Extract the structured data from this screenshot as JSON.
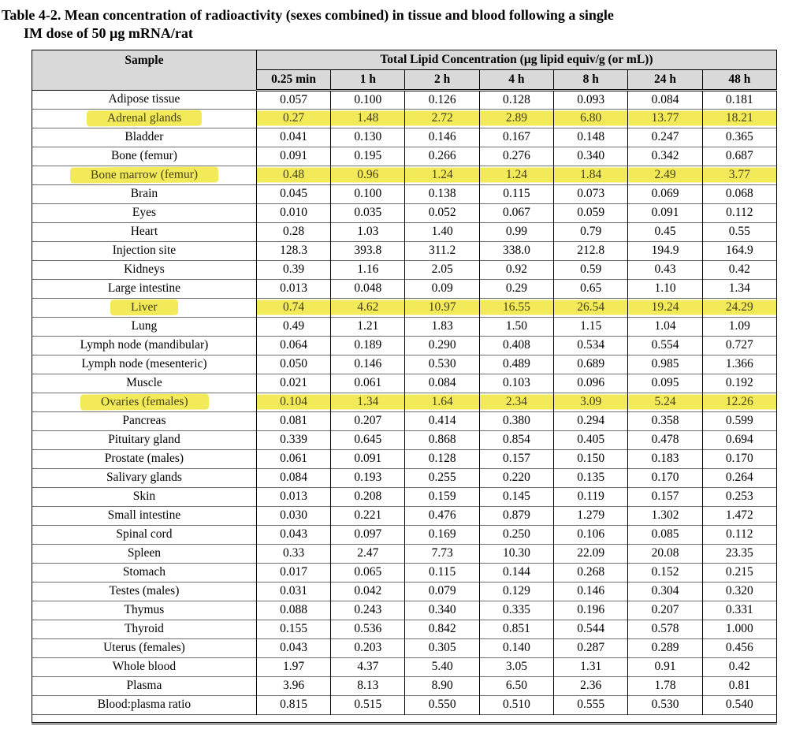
{
  "colors": {
    "header_bg": "#d9d9d9",
    "highlight": "#f2ea58"
  },
  "title": {
    "line1": "Table 4-2. Mean concentration of radioactivity (sexes combined) in tissue and blood following a single",
    "line2": "IM dose of 50 µg mRNA/rat"
  },
  "table": {
    "sample_header": "Sample",
    "group_header": "Total Lipid Concentration (µg lipid equiv/g (or mL))",
    "time_headers": [
      "0.25 min",
      "1 h",
      "2 h",
      "4 h",
      "8 h",
      "24 h",
      "48 h"
    ],
    "rows": [
      {
        "sample": "Adipose tissue",
        "values": [
          "0.057",
          "0.100",
          "0.126",
          "0.128",
          "0.093",
          "0.084",
          "0.181"
        ],
        "highlighted": false
      },
      {
        "sample": "Adrenal glands",
        "values": [
          "0.27",
          "1.48",
          "2.72",
          "2.89",
          "6.80",
          "13.77",
          "18.21"
        ],
        "highlighted": true
      },
      {
        "sample": "Bladder",
        "values": [
          "0.041",
          "0.130",
          "0.146",
          "0.167",
          "0.148",
          "0.247",
          "0.365"
        ],
        "highlighted": false
      },
      {
        "sample": "Bone (femur)",
        "values": [
          "0.091",
          "0.195",
          "0.266",
          "0.276",
          "0.340",
          "0.342",
          "0.687"
        ],
        "highlighted": false
      },
      {
        "sample": "Bone marrow (femur)",
        "values": [
          "0.48",
          "0.96",
          "1.24",
          "1.24",
          "1.84",
          "2.49",
          "3.77"
        ],
        "highlighted": true
      },
      {
        "sample": "Brain",
        "values": [
          "0.045",
          "0.100",
          "0.138",
          "0.115",
          "0.073",
          "0.069",
          "0.068"
        ],
        "highlighted": false
      },
      {
        "sample": "Eyes",
        "values": [
          "0.010",
          "0.035",
          "0.052",
          "0.067",
          "0.059",
          "0.091",
          "0.112"
        ],
        "highlighted": false
      },
      {
        "sample": "Heart",
        "values": [
          "0.28",
          "1.03",
          "1.40",
          "0.99",
          "0.79",
          "0.45",
          "0.55"
        ],
        "highlighted": false
      },
      {
        "sample": "Injection site",
        "values": [
          "128.3",
          "393.8",
          "311.2",
          "338.0",
          "212.8",
          "194.9",
          "164.9"
        ],
        "highlighted": false
      },
      {
        "sample": "Kidneys",
        "values": [
          "0.39",
          "1.16",
          "2.05",
          "0.92",
          "0.59",
          "0.43",
          "0.42"
        ],
        "highlighted": false
      },
      {
        "sample": "Large intestine",
        "values": [
          "0.013",
          "0.048",
          "0.09",
          "0.29",
          "0.65",
          "1.10",
          "1.34"
        ],
        "highlighted": false
      },
      {
        "sample": "Liver",
        "values": [
          "0.74",
          "4.62",
          "10.97",
          "16.55",
          "26.54",
          "19.24",
          "24.29"
        ],
        "highlighted": true
      },
      {
        "sample": "Lung",
        "values": [
          "0.49",
          "1.21",
          "1.83",
          "1.50",
          "1.15",
          "1.04",
          "1.09"
        ],
        "highlighted": false
      },
      {
        "sample": "Lymph node (mandibular)",
        "values": [
          "0.064",
          "0.189",
          "0.290",
          "0.408",
          "0.534",
          "0.554",
          "0.727"
        ],
        "highlighted": false
      },
      {
        "sample": "Lymph node (mesenteric)",
        "values": [
          "0.050",
          "0.146",
          "0.530",
          "0.489",
          "0.689",
          "0.985",
          "1.366"
        ],
        "highlighted": false
      },
      {
        "sample": "Muscle",
        "values": [
          "0.021",
          "0.061",
          "0.084",
          "0.103",
          "0.096",
          "0.095",
          "0.192"
        ],
        "highlighted": false
      },
      {
        "sample": "Ovaries (females)",
        "values": [
          "0.104",
          "1.34",
          "1.64",
          "2.34",
          "3.09",
          "5.24",
          "12.26"
        ],
        "highlighted": true
      },
      {
        "sample": "Pancreas",
        "values": [
          "0.081",
          "0.207",
          "0.414",
          "0.380",
          "0.294",
          "0.358",
          "0.599"
        ],
        "highlighted": false
      },
      {
        "sample": "Pituitary gland",
        "values": [
          "0.339",
          "0.645",
          "0.868",
          "0.854",
          "0.405",
          "0.478",
          "0.694"
        ],
        "highlighted": false
      },
      {
        "sample": "Prostate (males)",
        "values": [
          "0.061",
          "0.091",
          "0.128",
          "0.157",
          "0.150",
          "0.183",
          "0.170"
        ],
        "highlighted": false
      },
      {
        "sample": "Salivary glands",
        "values": [
          "0.084",
          "0.193",
          "0.255",
          "0.220",
          "0.135",
          "0.170",
          "0.264"
        ],
        "highlighted": false
      },
      {
        "sample": "Skin",
        "values": [
          "0.013",
          "0.208",
          "0.159",
          "0.145",
          "0.119",
          "0.157",
          "0.253"
        ],
        "highlighted": false
      },
      {
        "sample": "Small intestine",
        "values": [
          "0.030",
          "0.221",
          "0.476",
          "0.879",
          "1.279",
          "1.302",
          "1.472"
        ],
        "highlighted": false
      },
      {
        "sample": "Spinal cord",
        "values": [
          "0.043",
          "0.097",
          "0.169",
          "0.250",
          "0.106",
          "0.085",
          "0.112"
        ],
        "highlighted": false
      },
      {
        "sample": "Spleen",
        "values": [
          "0.33",
          "2.47",
          "7.73",
          "10.30",
          "22.09",
          "20.08",
          "23.35"
        ],
        "highlighted": false
      },
      {
        "sample": "Stomach",
        "values": [
          "0.017",
          "0.065",
          "0.115",
          "0.144",
          "0.268",
          "0.152",
          "0.215"
        ],
        "highlighted": false
      },
      {
        "sample": "Testes (males)",
        "values": [
          "0.031",
          "0.042",
          "0.079",
          "0.129",
          "0.146",
          "0.304",
          "0.320"
        ],
        "highlighted": false
      },
      {
        "sample": "Thymus",
        "values": [
          "0.088",
          "0.243",
          "0.340",
          "0.335",
          "0.196",
          "0.207",
          "0.331"
        ],
        "highlighted": false
      },
      {
        "sample": "Thyroid",
        "values": [
          "0.155",
          "0.536",
          "0.842",
          "0.851",
          "0.544",
          "0.578",
          "1.000"
        ],
        "highlighted": false
      },
      {
        "sample": "Uterus (females)",
        "values": [
          "0.043",
          "0.203",
          "0.305",
          "0.140",
          "0.287",
          "0.289",
          "0.456"
        ],
        "highlighted": false
      },
      {
        "sample": "Whole blood",
        "values": [
          "1.97",
          "4.37",
          "5.40",
          "3.05",
          "1.31",
          "0.91",
          "0.42"
        ],
        "highlighted": false
      },
      {
        "sample": "Plasma",
        "values": [
          "3.96",
          "8.13",
          "8.90",
          "6.50",
          "2.36",
          "1.78",
          "0.81"
        ],
        "highlighted": false
      },
      {
        "sample": "Blood:plasma ratio",
        "values": [
          "0.815",
          "0.515",
          "0.550",
          "0.510",
          "0.555",
          "0.530",
          "0.540"
        ],
        "highlighted": false
      }
    ]
  }
}
